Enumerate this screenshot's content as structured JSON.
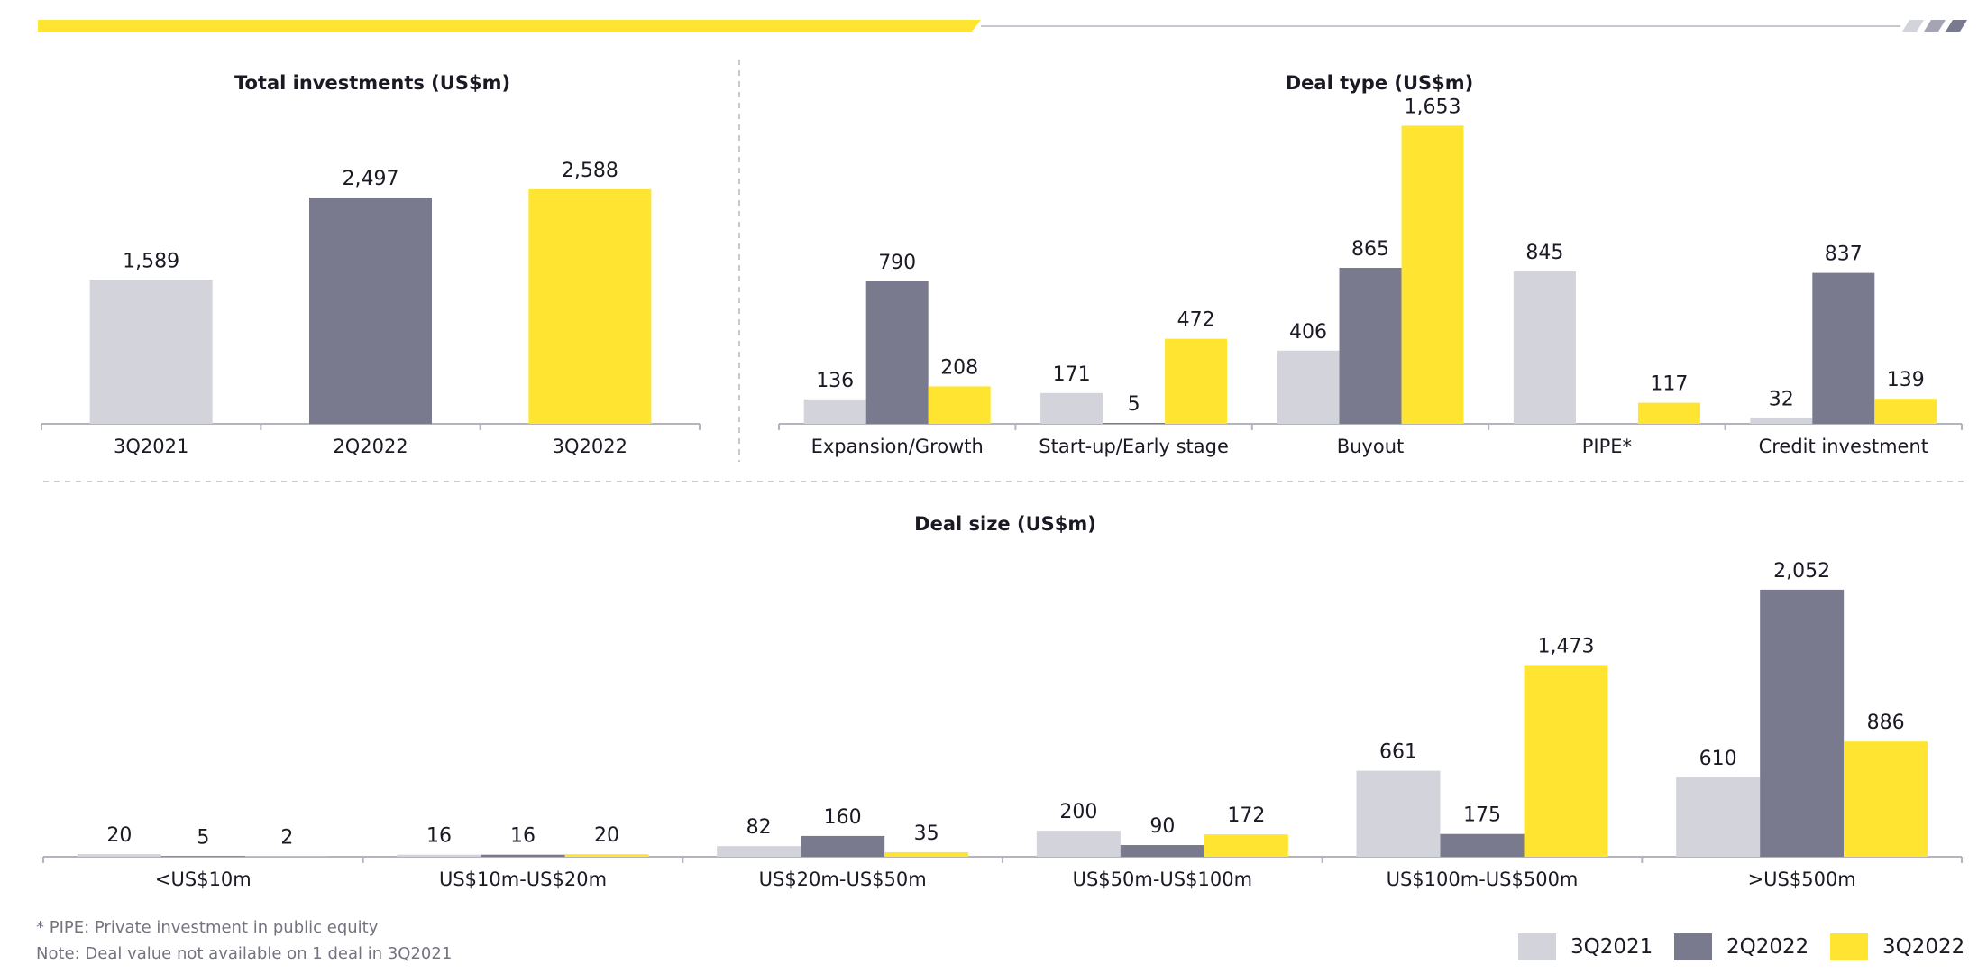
{
  "colors": {
    "s3Q2021": "#d3d3dc",
    "s2Q2022": "#7a7a8e",
    "s3Q2022": "#ffe532",
    "axis": "#b4b4bc",
    "accent": "#ffe532"
  },
  "legend": [
    {
      "label": "3Q2021",
      "color": "#d3d3dc"
    },
    {
      "label": "2Q2022",
      "color": "#7a7a8e"
    },
    {
      "label": "3Q2022",
      "color": "#ffe532"
    }
  ],
  "footnotes": {
    "pipe": "* PIPE: Private investment in public equity",
    "note": "Note: Deal value not available on 1 deal in 3Q2021"
  },
  "chart_data": [
    {
      "type": "bar",
      "title": "Total investments (US$m)",
      "categories": [
        "3Q2021",
        "2Q2022",
        "3Q2022"
      ],
      "values": [
        1589,
        2497,
        2588
      ],
      "labels": [
        "1,589",
        "2,497",
        "2,588"
      ],
      "colors": [
        "#d3d3dc",
        "#7a7a8e",
        "#ffe532"
      ]
    },
    {
      "type": "bar",
      "title": "Deal type (US$m)",
      "categories": [
        "Expansion/Growth",
        "Start-up/Early stage",
        "Buyout",
        "PIPE*",
        "Credit investment"
      ],
      "series": [
        {
          "name": "3Q2021",
          "values": [
            136,
            171,
            406,
            845,
            32
          ],
          "labels": [
            "136",
            "171",
            "406",
            "845",
            "32"
          ]
        },
        {
          "name": "2Q2022",
          "values": [
            790,
            5,
            865,
            0,
            837
          ],
          "labels": [
            "790",
            "5",
            "865",
            "",
            "837"
          ]
        },
        {
          "name": "3Q2022",
          "values": [
            208,
            472,
            1653,
            117,
            139
          ],
          "labels": [
            "208",
            "472",
            "1,653",
            "117",
            "139"
          ]
        }
      ]
    },
    {
      "type": "bar",
      "title": "Deal size (US$m)",
      "categories": [
        "<US$10m",
        "US$10m-US$20m",
        "US$20m-US$50m",
        "US$50m-US$100m",
        "US$100m-US$500m",
        ">US$500m"
      ],
      "series": [
        {
          "name": "3Q2021",
          "values": [
            20,
            16,
            82,
            200,
            661,
            610
          ],
          "labels": [
            "20",
            "16",
            "82",
            "200",
            "661",
            "610"
          ]
        },
        {
          "name": "2Q2022",
          "values": [
            5,
            16,
            160,
            90,
            175,
            2052
          ],
          "labels": [
            "5",
            "16",
            "160",
            "90",
            "175",
            "2,052"
          ]
        },
        {
          "name": "3Q2022",
          "values": [
            2,
            20,
            35,
            172,
            1473,
            886
          ],
          "labels": [
            "2",
            "20",
            "35",
            "172",
            "1,473",
            "886"
          ]
        }
      ]
    }
  ]
}
